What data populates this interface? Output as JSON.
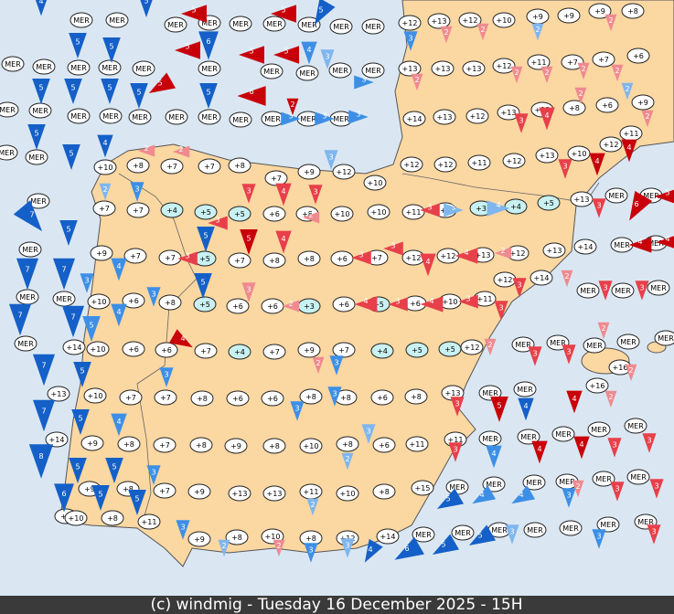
{
  "footer": "(c) windmig - Tuesday 16 December 2025 - 15H",
  "temps": [
    "+10",
    "+8",
    "+7",
    "+7",
    "+8",
    "+7",
    "+9",
    "+12",
    "+10",
    "+12",
    "+12",
    "+11",
    "+12",
    "+13",
    "+10",
    "+12",
    "+11",
    "+7",
    "+7",
    "+4",
    "+5",
    "+5",
    "+6",
    "+8",
    "+10",
    "+10",
    "+11",
    "+6",
    "+3",
    "+4",
    "+5",
    "+13",
    "+9",
    "+7",
    "+7",
    "+5",
    "+7",
    "+8",
    "+8",
    "+6",
    "+7",
    "+12",
    "+12",
    "+13",
    "+12",
    "+13",
    "+14",
    "+10",
    "+6",
    "+8",
    "+5",
    "+6",
    "+6",
    "+3",
    "+6",
    "+5",
    "+6",
    "+10",
    "+11",
    "+12",
    "+14",
    "+14",
    "+10",
    "+6",
    "+6",
    "+7",
    "+4",
    "+7",
    "+9",
    "+7",
    "+4",
    "+5",
    "+5",
    "+12",
    "+13",
    "+10",
    "+7",
    "+7",
    "+8",
    "+6",
    "+6",
    "+8",
    "+8",
    "+6",
    "+8",
    "+13",
    "+14",
    "+9",
    "+8",
    "+7",
    "+8",
    "+9",
    "+8",
    "+10",
    "+8",
    "+6",
    "+11",
    "+11",
    "+9",
    "+8",
    "+7",
    "+9",
    "+13",
    "+13",
    "+11",
    "+10",
    "+8",
    "+15",
    "+9",
    "+10",
    "+8",
    "+11",
    "+9",
    "+8",
    "+10",
    "+8",
    "+12",
    "+14",
    "+12",
    "+13",
    "+12",
    "+10",
    "+9",
    "+9",
    "+9",
    "+8",
    "+13",
    "+13",
    "+13",
    "+12",
    "+11",
    "+7",
    "+7",
    "+6",
    "+14",
    "+13",
    "+12",
    "+13",
    "+12",
    "+8",
    "+6",
    "+9",
    "+16",
    "+16"
  ],
  "sea_labels": [
    "MER",
    "MER",
    "MER",
    "MER",
    "MER",
    "MER",
    "MER",
    "MER",
    "MER",
    "MER",
    "MER",
    "MER",
    "MER",
    "MER",
    "MER",
    "MER",
    "MER",
    "MER",
    "MER",
    "MER",
    "MER",
    "MER",
    "MER",
    "MER",
    "MER",
    "MER",
    "MER",
    "MER",
    "MER",
    "MER",
    "MER",
    "MER",
    "MER",
    "MER",
    "MER",
    "MER",
    "MER",
    "MER",
    "MER",
    "MER",
    "MER",
    "MER",
    "MER",
    "MER",
    "MER",
    "MER",
    "MER",
    "MER",
    "MER",
    "MER",
    "MER",
    "MER",
    "MER",
    "MER",
    "MER",
    "MER",
    "MER",
    "MER",
    "MER",
    "MER",
    "MER",
    "MER",
    "MER",
    "MER",
    "MER",
    "MER",
    "MER",
    "MER",
    "MER"
  ],
  "winds": [
    "4",
    "5",
    "5",
    "5",
    "5",
    "5",
    "5",
    "5",
    "6",
    "5",
    "5",
    "5",
    "4",
    "5",
    "7",
    "7",
    "7",
    "7",
    "7",
    "5",
    "7",
    "5",
    "8",
    "5",
    "5",
    "6",
    "5",
    "5",
    "7",
    "5",
    "5",
    "3",
    "2",
    "4",
    "3",
    "4",
    "5",
    "3",
    "3",
    "4",
    "3",
    "3",
    "2",
    "3",
    "4",
    "6",
    "5",
    "5",
    "5",
    "4",
    "4",
    "3",
    "4",
    "4",
    "3",
    "2",
    "2",
    "3",
    "3",
    "3",
    "3",
    "3",
    "3",
    "3",
    "3",
    "3",
    "4",
    "5",
    "3",
    "2",
    "2",
    "3",
    "3",
    "4",
    "3",
    "3",
    "5",
    "5",
    "5",
    "5",
    "5",
    "5",
    "6",
    "2",
    "2",
    "2",
    "3",
    "4",
    "3",
    "3",
    "5",
    "4",
    "3",
    "3",
    "4",
    "2",
    "3",
    "3",
    "4",
    "4",
    "2",
    "4",
    "3",
    "4",
    "3",
    "3",
    "2",
    "2",
    "2",
    "3",
    "3",
    "5",
    "4",
    "4",
    "4",
    "2",
    "2",
    "3",
    "3",
    "2",
    "3",
    "3",
    "2",
    "3",
    "3",
    "3",
    "6",
    "5",
    "4",
    "4",
    "4",
    "4",
    "3",
    "3",
    "4",
    "2",
    "2",
    "2",
    "2",
    "2",
    "2",
    "2",
    "2",
    "2",
    "2",
    "3",
    "3",
    "2",
    "3",
    "3",
    "3",
    "2"
  ]
}
